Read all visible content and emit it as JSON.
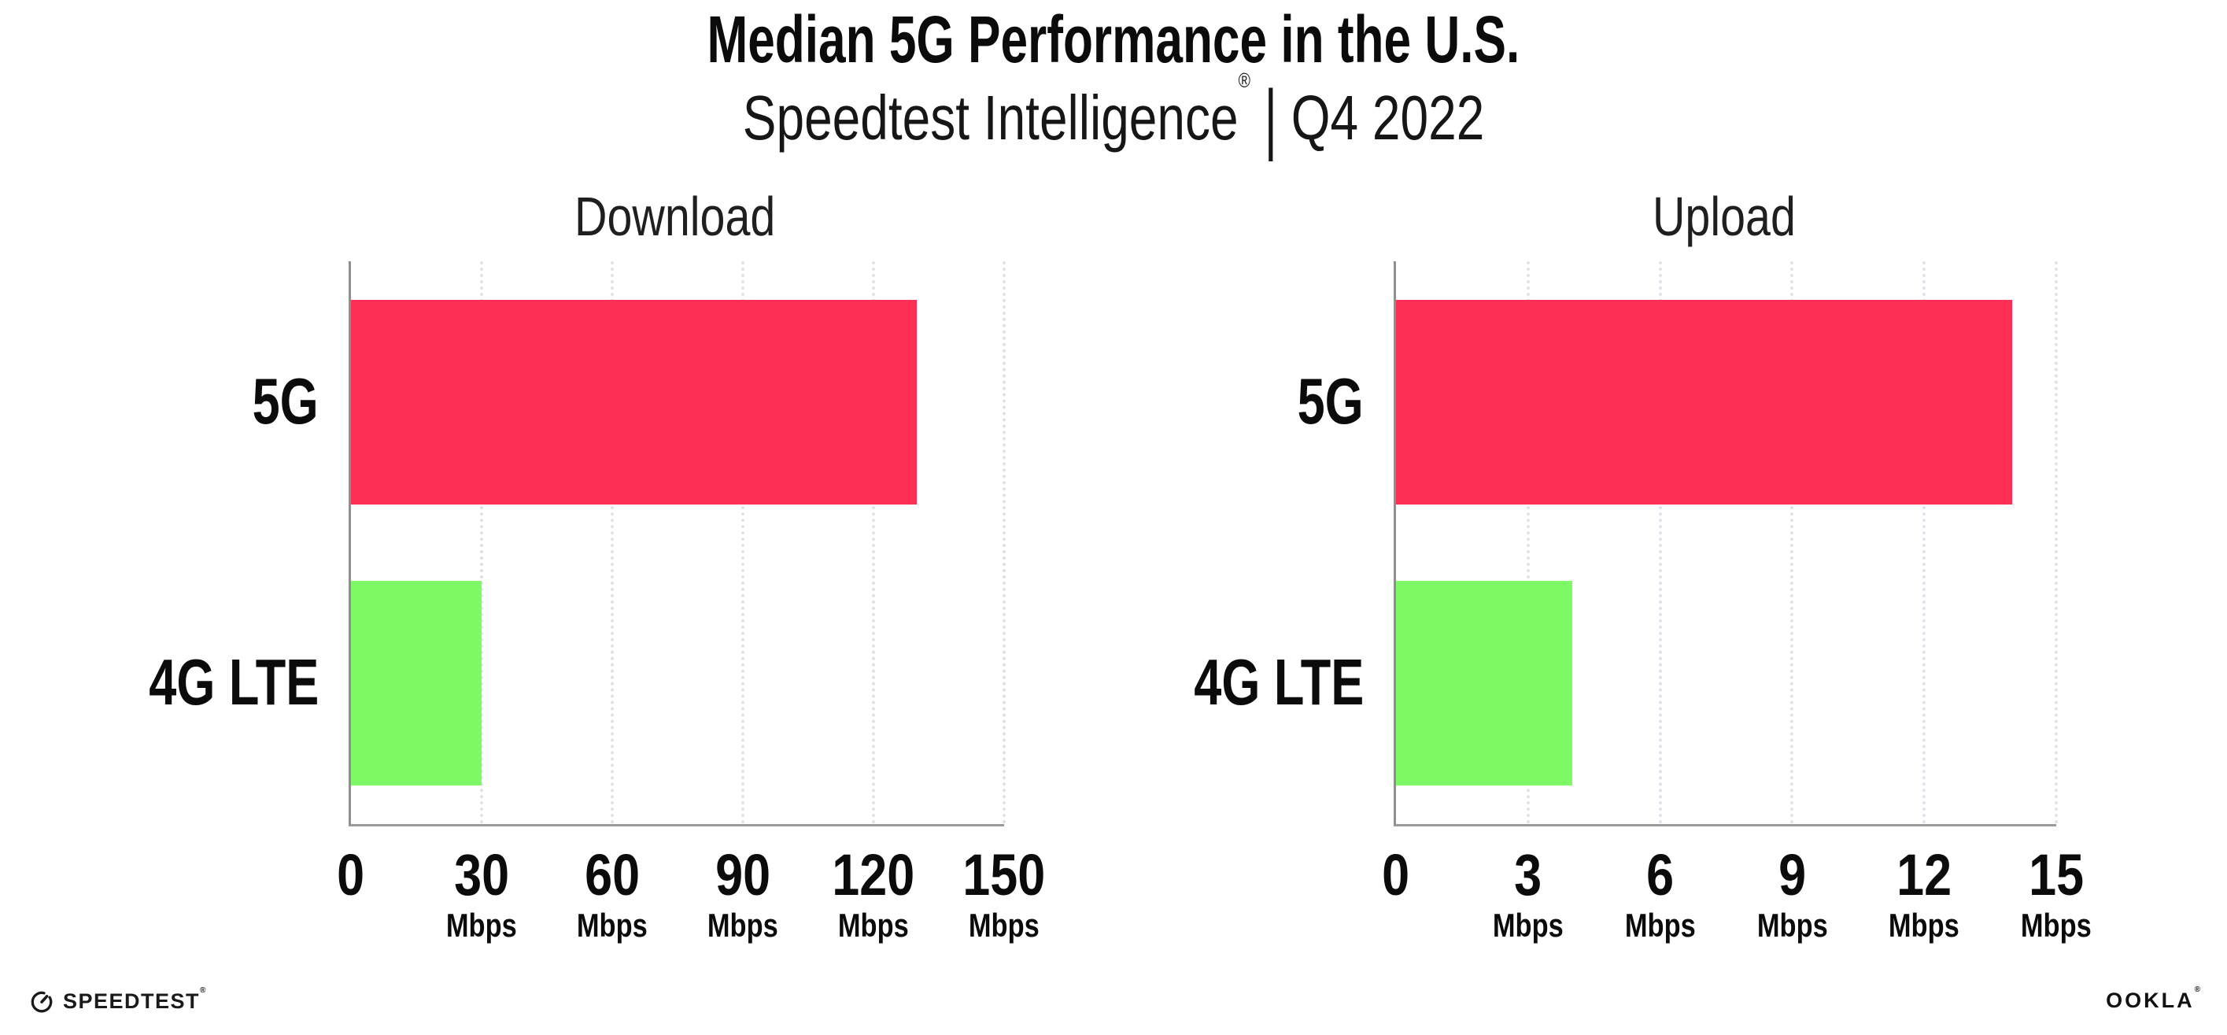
{
  "header": {
    "title": "Median 5G Performance in the U.S.",
    "subtitle": {
      "brand": "Speedtest Intelligence",
      "trademark": "®",
      "separator": "|",
      "period": "Q4 2022"
    }
  },
  "chart_data": [
    {
      "type": "bar",
      "orientation": "horizontal",
      "title": "Download",
      "categories": [
        "5G",
        "4G LTE"
      ],
      "values": [
        130,
        30
      ],
      "unit": "Mbps",
      "xlabel": "",
      "ylabel": "",
      "xlim": [
        0,
        150
      ],
      "ticks": [
        0,
        30,
        60,
        90,
        120,
        150
      ],
      "bar_colors": [
        "#FF2E55",
        "#7EFA66"
      ],
      "grid": "vertical-dotted",
      "legend": "none"
    },
    {
      "type": "bar",
      "orientation": "horizontal",
      "title": "Upload",
      "categories": [
        "5G",
        "4G LTE"
      ],
      "values": [
        14,
        4
      ],
      "unit": "Mbps",
      "xlabel": "",
      "ylabel": "",
      "xlim": [
        0,
        15
      ],
      "ticks": [
        0,
        3,
        6,
        9,
        12,
        15
      ],
      "bar_colors": [
        "#FF2E55",
        "#7EFA66"
      ],
      "grid": "vertical-dotted",
      "legend": "none"
    }
  ],
  "footer": {
    "speedtest_wordmark": "SPEEDTEST",
    "speedtest_trademark": "®",
    "ookla_wordmark": "OOKLA",
    "ookla_trademark": "®"
  },
  "colors": {
    "bar_5g": "#FF2E55",
    "bar_4g_lte": "#7EFA66",
    "axis_vertical": "#8F8F8F",
    "axis_horizontal": "#9A9A9A",
    "gridline": "#DFE2EC",
    "text": "#0B0B0B"
  }
}
